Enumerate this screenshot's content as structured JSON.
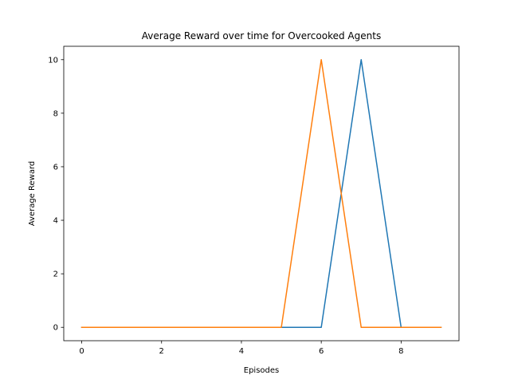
{
  "chart_data": {
    "type": "line",
    "title": "Average Reward over time for Overcooked Agents",
    "xlabel": "Episodes",
    "ylabel": "Average Reward",
    "xlim": [
      -0.45,
      9.45
    ],
    "ylim": [
      -0.5,
      10.5
    ],
    "xticks": [
      0,
      2,
      4,
      6,
      8
    ],
    "yticks": [
      0,
      2,
      4,
      6,
      8,
      10
    ],
    "grid": false,
    "x": [
      0,
      1,
      2,
      3,
      4,
      5,
      6,
      7,
      8,
      9
    ],
    "series": [
      {
        "color": "#1f77b4",
        "values": [
          0,
          0,
          0,
          0,
          0,
          0,
          0,
          10,
          0,
          0
        ]
      },
      {
        "color": "#ff7f0e",
        "values": [
          0,
          0,
          0,
          0,
          0,
          0,
          10,
          0,
          0,
          0
        ]
      }
    ]
  }
}
